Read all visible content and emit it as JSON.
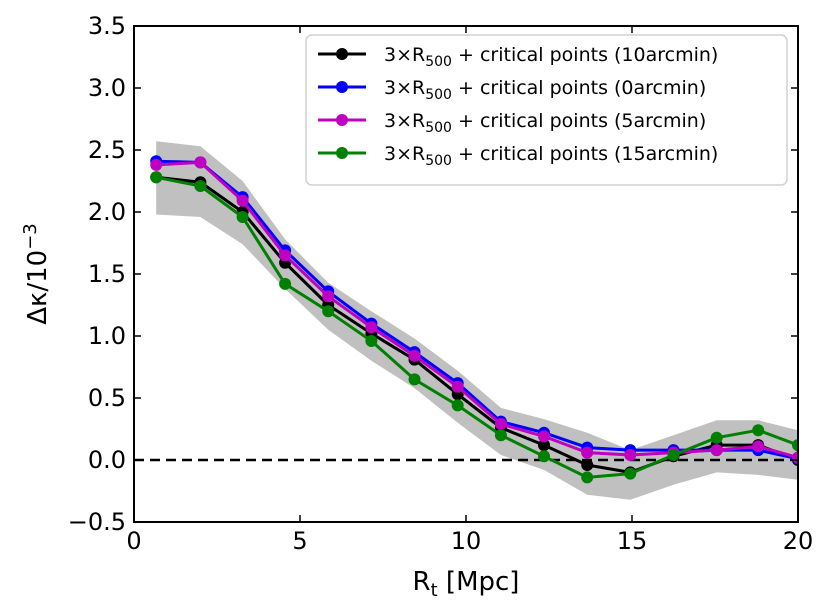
{
  "chart_data": {
    "type": "line",
    "xlabel_main": "R",
    "xlabel_sub": "t",
    "xlabel_unit": " [Mpc]",
    "ylabel_main": "Δκ/10",
    "ylabel_sup": "−3",
    "xlim": [
      0,
      20
    ],
    "ylim": [
      -0.5,
      3.5
    ],
    "xticks": [
      0,
      5,
      10,
      15,
      20
    ],
    "xtick_labels": [
      "0",
      "5",
      "10",
      "15",
      "20"
    ],
    "yticks": [
      -0.5,
      0.0,
      0.5,
      1.0,
      1.5,
      2.0,
      2.5,
      3.0,
      3.5
    ],
    "ytick_labels": [
      "−0.5",
      "0.0",
      "0.5",
      "1.0",
      "1.5",
      "2.0",
      "2.5",
      "3.0",
      "3.5"
    ],
    "zero_line": 0,
    "legend_position": "top-right",
    "x": [
      0.67,
      2.0,
      3.27,
      4.55,
      5.85,
      7.15,
      8.45,
      9.75,
      11.05,
      12.35,
      13.65,
      14.95,
      16.25,
      17.55,
      18.8,
      20.0
    ],
    "error_band": {
      "color": "#c0c0c0",
      "lower": [
        1.98,
        1.96,
        1.74,
        1.38,
        1.05,
        0.8,
        0.58,
        0.3,
        0.04,
        -0.08,
        -0.28,
        -0.32,
        -0.2,
        -0.1,
        -0.12,
        -0.16
      ],
      "upper": [
        2.57,
        2.53,
        2.25,
        1.78,
        1.43,
        1.2,
        0.98,
        0.72,
        0.42,
        0.33,
        0.22,
        0.08,
        0.2,
        0.32,
        0.32,
        0.24
      ]
    },
    "series": [
      {
        "name": "10arcmin",
        "label_pre": "3×R",
        "label_sub": "500",
        "label_post": " + critical points (10arcmin)",
        "color": "#000000",
        "values": [
          2.28,
          2.24,
          2.0,
          1.59,
          1.25,
          1.02,
          0.81,
          0.53,
          0.26,
          0.12,
          -0.04,
          -0.1,
          0.03,
          0.12,
          0.12,
          0.0
        ]
      },
      {
        "name": "0arcmin",
        "label_pre": "3×R",
        "label_sub": "500",
        "label_post": " + critical points (0arcmin)",
        "color": "#0000ff",
        "values": [
          2.41,
          2.4,
          2.12,
          1.69,
          1.36,
          1.1,
          0.87,
          0.62,
          0.31,
          0.22,
          0.1,
          0.08,
          0.08,
          0.08,
          0.08,
          0.01
        ]
      },
      {
        "name": "5arcmin",
        "label_pre": "3×R",
        "label_sub": "500",
        "label_post": " + critical points (5arcmin)",
        "color": "#c000c0",
        "values": [
          2.38,
          2.4,
          2.09,
          1.65,
          1.32,
          1.07,
          0.84,
          0.59,
          0.29,
          0.19,
          0.06,
          0.04,
          0.06,
          0.08,
          0.11,
          0.02
        ]
      },
      {
        "name": "15arcmin",
        "label_pre": "3×R",
        "label_sub": "500",
        "label_post": " + critical points (15arcmin)",
        "color": "#008000",
        "values": [
          2.28,
          2.21,
          1.96,
          1.42,
          1.2,
          0.96,
          0.65,
          0.44,
          0.2,
          0.03,
          -0.14,
          -0.11,
          0.04,
          0.18,
          0.24,
          0.12
        ]
      }
    ]
  }
}
